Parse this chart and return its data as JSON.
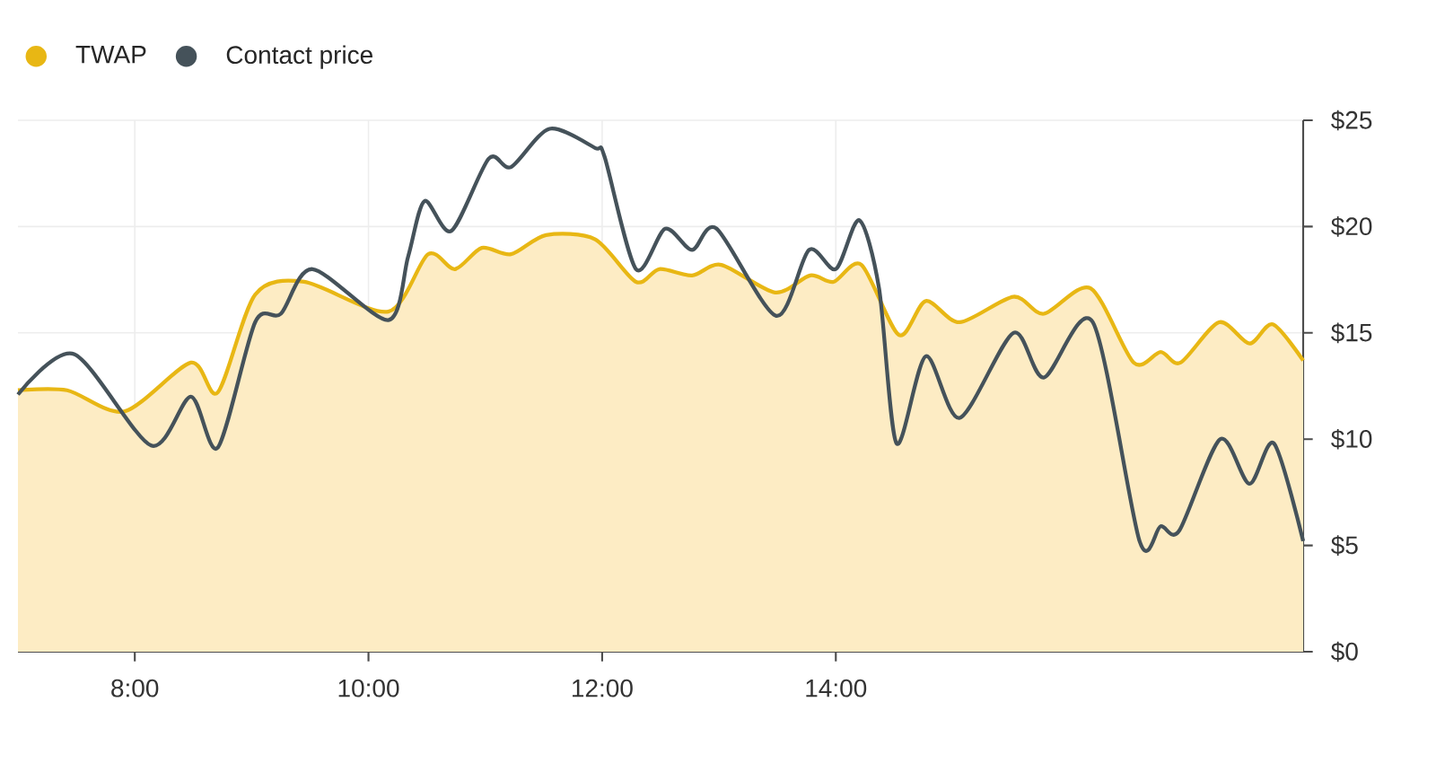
{
  "chart_data": {
    "type": "line",
    "xlim": [
      7,
      18
    ],
    "ylim": [
      0,
      25
    ],
    "xticks": [
      {
        "value": 8,
        "label": "8:00"
      },
      {
        "value": 10,
        "label": "10:00"
      },
      {
        "value": 12,
        "label": "12:00"
      },
      {
        "value": 14,
        "label": "14:00"
      }
    ],
    "yticks": [
      {
        "value": 0,
        "label": "$0"
      },
      {
        "value": 5,
        "label": "$5"
      },
      {
        "value": 10,
        "label": "$10"
      },
      {
        "value": 15,
        "label": "$15"
      },
      {
        "value": 20,
        "label": "$20"
      },
      {
        "value": 25,
        "label": "$25"
      }
    ],
    "grid": true,
    "legend": "top left",
    "series": [
      {
        "name": "TWAP",
        "type": "area",
        "color": "#e8b714",
        "x": [
          7.0,
          7.42,
          7.91,
          8.48,
          8.71,
          9.03,
          9.45,
          10.17,
          10.51,
          10.74,
          10.97,
          11.22,
          11.52,
          11.94,
          12.29,
          12.49,
          12.77,
          13.02,
          13.48,
          13.78,
          13.98,
          14.22,
          14.54,
          14.77,
          15.06,
          15.52,
          15.78,
          16.18,
          16.55,
          16.78,
          16.95,
          17.28,
          17.54,
          17.74,
          18.0
        ],
        "values": [
          12.3,
          12.3,
          11.3,
          13.6,
          12.2,
          16.8,
          17.4,
          16.0,
          18.7,
          18.0,
          19.0,
          18.7,
          19.6,
          19.4,
          17.4,
          18.0,
          17.7,
          18.2,
          16.9,
          17.7,
          17.4,
          18.2,
          14.9,
          16.5,
          15.5,
          16.7,
          15.9,
          17.1,
          13.6,
          14.1,
          13.6,
          15.5,
          14.5,
          15.4,
          13.7
        ]
      },
      {
        "name": "Contact price",
        "color": "#45525a",
        "x": [
          7.0,
          7.48,
          8.14,
          8.48,
          8.71,
          9.03,
          9.25,
          9.52,
          10.17,
          10.34,
          10.48,
          10.71,
          11.03,
          11.22,
          11.55,
          11.94,
          12.02,
          12.29,
          12.54,
          12.77,
          12.98,
          13.49,
          13.77,
          14.0,
          14.2,
          14.37,
          14.52,
          14.77,
          15.06,
          15.52,
          15.78,
          16.2,
          16.6,
          16.78,
          16.94,
          17.29,
          17.54,
          17.75,
          18.0
        ],
        "values": [
          12.1,
          14.0,
          9.7,
          12.0,
          9.6,
          15.5,
          15.9,
          18.0,
          15.6,
          18.6,
          21.2,
          19.8,
          23.2,
          22.8,
          24.6,
          23.7,
          23.3,
          18.0,
          19.9,
          18.9,
          19.9,
          15.8,
          18.9,
          18.0,
          20.3,
          17.1,
          9.8,
          13.9,
          11.0,
          15.0,
          12.9,
          15.5,
          5.2,
          5.9,
          5.7,
          10.0,
          7.9,
          9.8,
          5.2
        ]
      }
    ]
  }
}
